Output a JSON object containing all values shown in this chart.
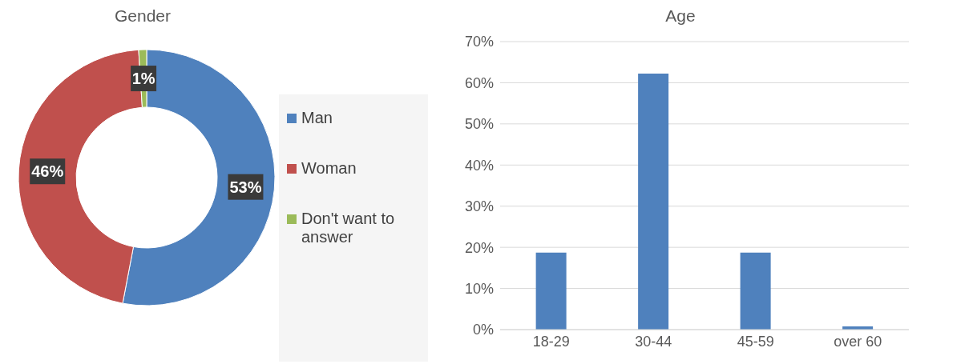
{
  "chart_data": [
    {
      "type": "donut",
      "title": "Gender",
      "categories": [
        "Man",
        "Woman",
        "Don't want to answer"
      ],
      "values": [
        53,
        46,
        1
      ],
      "colors": [
        "#4f81bd",
        "#c0504d",
        "#9bbb59"
      ],
      "value_labels": [
        "53%",
        "46%",
        "1%"
      ],
      "legend": "right"
    },
    {
      "type": "bar",
      "title": "Age",
      "categories": [
        "18-29",
        "30-44",
        "45-59",
        "over 60"
      ],
      "values": [
        18.7,
        62.2,
        18.7,
        0.8
      ],
      "color": "#4f81bd",
      "ylim": [
        0,
        70
      ],
      "yticks": [
        {
          "value": 0,
          "label": "0%"
        },
        {
          "value": 10,
          "label": "10%"
        },
        {
          "value": 20,
          "label": "20%"
        },
        {
          "value": 30,
          "label": "30%"
        },
        {
          "value": 40,
          "label": "40%"
        },
        {
          "value": 50,
          "label": "50%"
        },
        {
          "value": 60,
          "label": "60%"
        },
        {
          "value": 70,
          "label": "70%"
        }
      ],
      "grid": "y",
      "legend": false
    }
  ]
}
